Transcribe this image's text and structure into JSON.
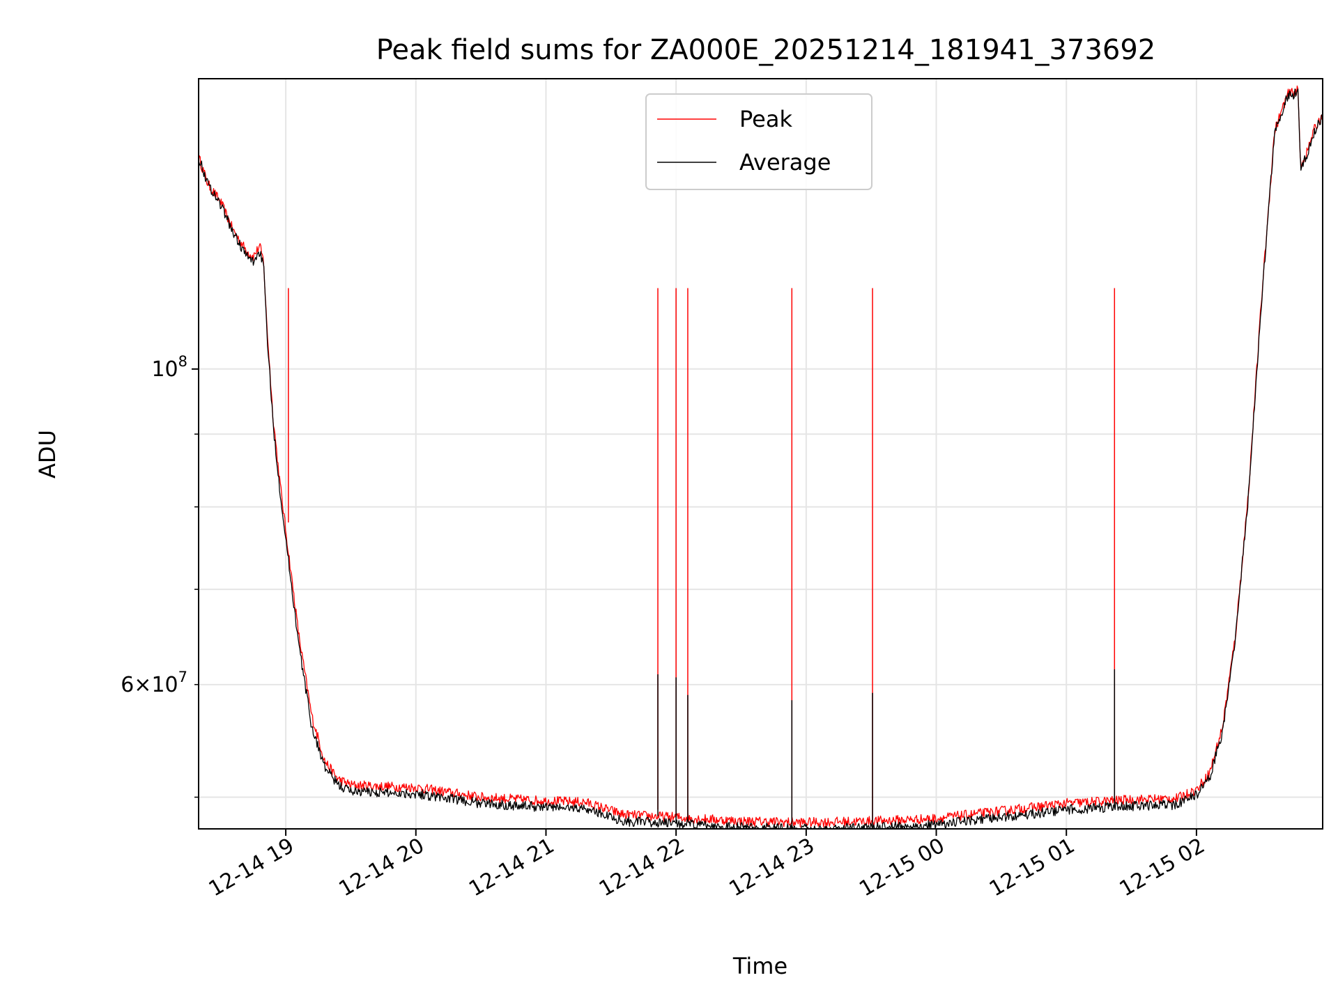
{
  "chart_data": {
    "type": "line",
    "title": "Peak field sums for ZA000E_20251214_181941_373692",
    "xlabel": "Time",
    "ylabel": "ADU",
    "yscale": "log",
    "xlim_hours": [
      -0.67,
      7.97
    ],
    "ylim": [
      47500000,
      160000000
    ],
    "x_ticks": [
      {
        "hour": 0,
        "label": "12-14 19"
      },
      {
        "hour": 1,
        "label": "12-14 20"
      },
      {
        "hour": 2,
        "label": "12-14 21"
      },
      {
        "hour": 3,
        "label": "12-14 22"
      },
      {
        "hour": 4,
        "label": "12-14 23"
      },
      {
        "hour": 5,
        "label": "12-15 00"
      },
      {
        "hour": 6,
        "label": "12-15 01"
      },
      {
        "hour": 7,
        "label": "12-15 02"
      }
    ],
    "y_major_ticks": [
      {
        "value": 100000000,
        "base": "10",
        "exp": "8"
      }
    ],
    "y_labeled_minor_ticks": [
      {
        "value": 60000000,
        "mant": "6",
        "base": "10",
        "exp": "7"
      }
    ],
    "y_minor_ticks": [
      50000000,
      60000000,
      70000000,
      80000000,
      90000000
    ],
    "grid": true,
    "legend": {
      "position": "top-center",
      "entries": [
        {
          "label": "Peak",
          "color": "#ff0000"
        },
        {
          "label": "Average",
          "color": "#000000"
        }
      ]
    },
    "series": [
      {
        "name": "Peak",
        "color": "#ff0000",
        "x_hours": [
          -0.67,
          -0.6,
          -0.5,
          -0.4,
          -0.3,
          -0.25,
          -0.2,
          -0.17,
          -0.15,
          -0.1,
          -0.05,
          0.0,
          0.1,
          0.2,
          0.3,
          0.4,
          0.5,
          0.7,
          1.0,
          1.5,
          2.0,
          2.3,
          2.6,
          3.0,
          3.5,
          4.0,
          4.5,
          5.0,
          5.5,
          6.0,
          6.5,
          6.85,
          7.0,
          7.1,
          7.2,
          7.3,
          7.4,
          7.5,
          7.6,
          7.7,
          7.78,
          7.8,
          7.85,
          7.9,
          7.97
        ],
        "values": [
          141000000,
          135000000,
          131000000,
          125000000,
          121000000,
          120000000,
          122000000,
          119000000,
          109000000,
          93000000,
          84000000,
          77000000,
          65000000,
          57000000,
          53000000,
          51500000,
          51000000,
          50900000,
          50800000,
          50000000,
          49700000,
          49600000,
          48600000,
          48400000,
          48100000,
          48000000,
          48100000,
          48300000,
          48900000,
          49500000,
          49800000,
          49900000,
          50600000,
          52000000,
          56000000,
          65000000,
          82000000,
          112000000,
          147000000,
          156000000,
          157000000,
          139000000,
          142000000,
          147000000,
          151000000
        ],
        "spikes": [
          {
            "hour": 0.02,
            "top": 114000000,
            "base": 78000000
          },
          {
            "hour": 2.86,
            "top": 114000000,
            "base": 49000000
          },
          {
            "hour": 3.0,
            "top": 114000000,
            "base": 48600000
          },
          {
            "hour": 3.09,
            "top": 114000000,
            "base": 48600000
          },
          {
            "hour": 3.89,
            "top": 114000000,
            "base": 48100000
          },
          {
            "hour": 4.51,
            "top": 114000000,
            "base": 48100000
          },
          {
            "hour": 6.37,
            "top": 114000000,
            "base": 49600000
          }
        ],
        "noise": 0.008
      },
      {
        "name": "Average",
        "color": "#000000",
        "x_hours": [
          -0.67,
          -0.6,
          -0.5,
          -0.4,
          -0.3,
          -0.25,
          -0.2,
          -0.17,
          -0.15,
          -0.1,
          -0.05,
          0.0,
          0.1,
          0.2,
          0.3,
          0.4,
          0.5,
          0.7,
          1.0,
          1.5,
          2.0,
          2.3,
          2.6,
          3.0,
          3.5,
          4.0,
          4.5,
          5.0,
          5.5,
          6.0,
          6.5,
          6.85,
          7.0,
          7.1,
          7.2,
          7.3,
          7.4,
          7.5,
          7.6,
          7.7,
          7.78,
          7.8,
          7.85,
          7.9,
          7.97
        ],
        "values": [
          141000000,
          135000000,
          130500000,
          124500000,
          120000000,
          119000000,
          121000000,
          118000000,
          108000000,
          92000000,
          83000000,
          76000000,
          64000000,
          56000000,
          52500000,
          51000000,
          50500000,
          50400000,
          50300000,
          49500000,
          49200000,
          49100000,
          48100000,
          47900000,
          47600000,
          47500000,
          47600000,
          47800000,
          48400000,
          49000000,
          49300000,
          49400000,
          50200000,
          51600000,
          55600000,
          64600000,
          81600000,
          111500000,
          146500000,
          155500000,
          156500000,
          138500000,
          141500000,
          146500000,
          150500000
        ],
        "spikes": [
          {
            "hour": 2.86,
            "top": 61000000,
            "base": 48500000
          },
          {
            "hour": 3.0,
            "top": 60700000,
            "base": 48100000
          },
          {
            "hour": 3.09,
            "top": 59000000,
            "base": 48100000
          },
          {
            "hour": 3.89,
            "top": 58500000,
            "base": 47600000
          },
          {
            "hour": 4.51,
            "top": 59200000,
            "base": 47600000
          },
          {
            "hour": 6.37,
            "top": 61500000,
            "base": 49100000
          }
        ],
        "noise": 0.008
      }
    ]
  }
}
